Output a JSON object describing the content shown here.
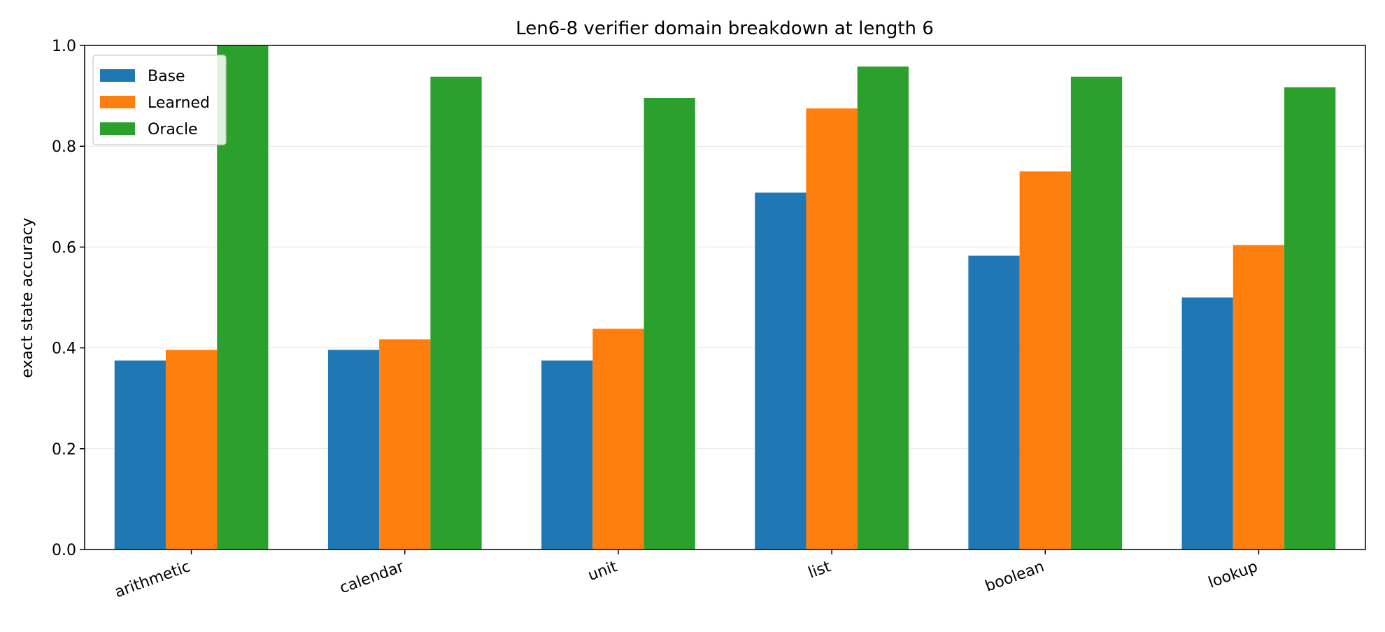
{
  "chart_data": {
    "type": "bar",
    "title": "Len6-8 verifier domain breakdown at length 6",
    "xlabel": "",
    "ylabel": "exact state accuracy",
    "ylim": [
      0,
      1.0
    ],
    "yticks": [
      "0.0",
      "0.2",
      "0.4",
      "0.6",
      "0.8",
      "1.0"
    ],
    "categories": [
      "arithmetic",
      "calendar",
      "unit",
      "list",
      "boolean",
      "lookup"
    ],
    "series": [
      {
        "name": "Base",
        "color": "#1f77b4",
        "values": [
          0.375,
          0.396,
          0.375,
          0.708,
          0.583,
          0.5
        ]
      },
      {
        "name": "Learned",
        "color": "#ff7f0e",
        "values": [
          0.396,
          0.417,
          0.438,
          0.875,
          0.75,
          0.604
        ]
      },
      {
        "name": "Oracle",
        "color": "#2ca02c",
        "values": [
          1.0,
          0.938,
          0.896,
          0.958,
          0.938,
          0.917
        ]
      }
    ],
    "grid": "y",
    "legend_position": "top-left"
  }
}
